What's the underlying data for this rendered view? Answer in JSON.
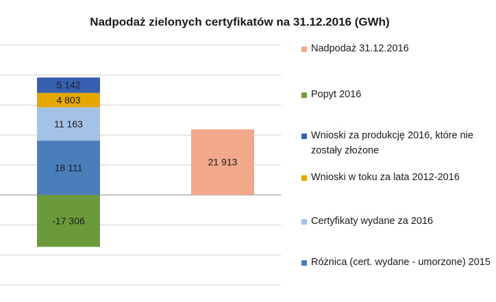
{
  "chart_data": {
    "type": "stacked_bar",
    "title": "Nadpodaż zielonych certyfikatów na 31.12.2016 (GWh)",
    "categories": [
      null,
      null
    ],
    "series": [
      {
        "name": "Różnica (cert. wydane - umorzone) 2015",
        "color": "#4a7ebb",
        "values": [
          18111,
          null
        ],
        "value_labels": [
          "18 111",
          null
        ]
      },
      {
        "name": "Certyfikaty wydane za 2016",
        "color": "#a4c2e6",
        "values": [
          11163,
          null
        ],
        "value_labels": [
          "11 163",
          null
        ]
      },
      {
        "name": "Wnioski w toku za lata 2012-2016",
        "color": "#e6a800",
        "values": [
          4803,
          null
        ],
        "value_labels": [
          "4 803",
          null
        ]
      },
      {
        "name": "Wnioski za produkcję 2016, które nie zostały złożone",
        "color": "#3761b0",
        "values": [
          5142,
          null
        ],
        "value_labels": [
          "5 142",
          null
        ]
      },
      {
        "name": "Popyt 2016",
        "color": "#6a9a3a",
        "values": [
          -17306,
          null
        ],
        "value_labels": [
          "-17 306",
          null
        ]
      },
      {
        "name": "Nadpodaż 31.12.2016",
        "color": "#f2a98b",
        "values": [
          null,
          21913
        ],
        "value_labels": [
          null,
          "21 913"
        ]
      }
    ],
    "ylim": [
      -30000,
      50000
    ],
    "yticks": [
      -30000,
      -20000,
      -10000,
      0,
      10000,
      20000,
      30000,
      40000,
      50000
    ],
    "grid": true
  }
}
